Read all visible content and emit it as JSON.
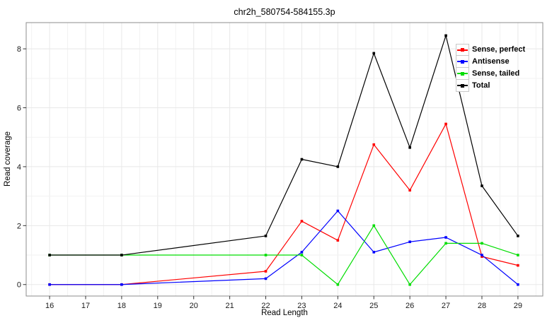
{
  "chart_data": {
    "type": "line",
    "title": "chr2h_580754-584155.3p",
    "xlabel": "Read Length",
    "ylabel": "Read coverage",
    "x": [
      16,
      18,
      22,
      23,
      24,
      25,
      26,
      27,
      28,
      29
    ],
    "series": [
      {
        "name": "Sense, perfect",
        "color": "#ff0000",
        "values": [
          0,
          0,
          0.45,
          2.15,
          1.5,
          4.75,
          3.2,
          5.45,
          0.95,
          0.65
        ]
      },
      {
        "name": "Antisense",
        "color": "#0000ff",
        "values": [
          0,
          0,
          0.2,
          1.1,
          2.5,
          1.1,
          1.45,
          1.6,
          1.0,
          0
        ]
      },
      {
        "name": "Sense, tailed",
        "color": "#00dd00",
        "values": [
          1,
          1,
          1,
          1,
          0,
          2,
          0,
          1.4,
          1.4,
          1
        ]
      },
      {
        "name": "Total",
        "color": "#000000",
        "values": [
          1,
          1,
          1.65,
          4.25,
          4.0,
          7.85,
          4.65,
          8.45,
          3.35,
          1.65
        ]
      }
    ],
    "x_ticks": [
      16,
      17,
      18,
      19,
      20,
      21,
      22,
      23,
      24,
      25,
      26,
      27,
      28,
      29
    ],
    "y_ticks": [
      0,
      2,
      4,
      6,
      8
    ],
    "xlim": [
      15.35,
      29.69
    ],
    "ylim": [
      -0.39,
      8.89
    ],
    "grid": {
      "on": true,
      "x_minor_step": 0.5,
      "y_step": 1
    },
    "legend_position": "top-right",
    "colors": {
      "panel_border": "#8c8c8c",
      "grid_major": "#e8e8e8",
      "grid_minor": "#f2f2f2",
      "tick_mark": "#333333",
      "tick_text": "#1a1a1a"
    }
  }
}
